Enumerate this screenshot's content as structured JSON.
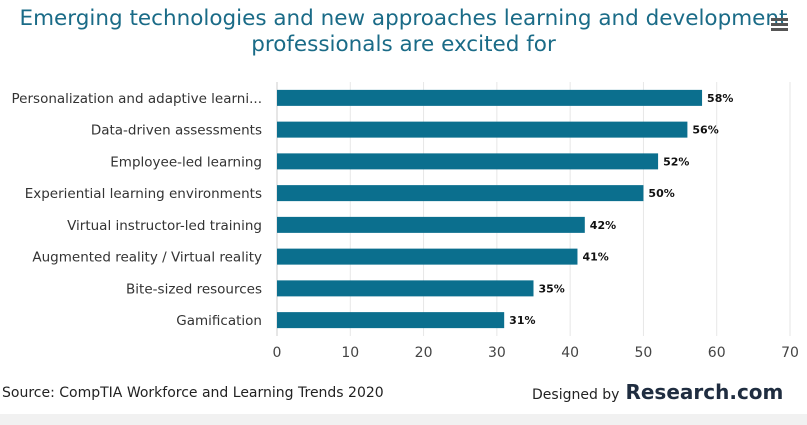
{
  "chart_data": {
    "type": "bar",
    "orientation": "horizontal",
    "title": "Emerging technologies and new approaches learning and development professionals are excited for",
    "title_lines": [
      "Emerging technologies and new approaches learning and development",
      "professionals are excited for"
    ],
    "categories": [
      "Personalization and adaptive learni...",
      "Data-driven assessments",
      "Employee-led learning",
      "Experiential learning environments",
      "Virtual instructor-led training",
      "Augmented reality / Virtual reality",
      "Bite-sized resources",
      "Gamification"
    ],
    "values": [
      58,
      56,
      52,
      50,
      42,
      41,
      35,
      31
    ],
    "data_labels": [
      "58%",
      "56%",
      "52%",
      "50%",
      "42%",
      "41%",
      "35%",
      "31%"
    ],
    "xlim": [
      0,
      70
    ],
    "xticks": [
      "0",
      "10",
      "20",
      "30",
      "40",
      "50",
      "60",
      "70"
    ],
    "grid": true,
    "bar_color": "#0b6f8e"
  },
  "footer": {
    "source": "Source: CompTIA Workforce and Learning Trends 2020",
    "designed_by": "Designed by",
    "brand": "Research.com"
  },
  "icons": {
    "menu": "hamburger-menu-icon"
  }
}
